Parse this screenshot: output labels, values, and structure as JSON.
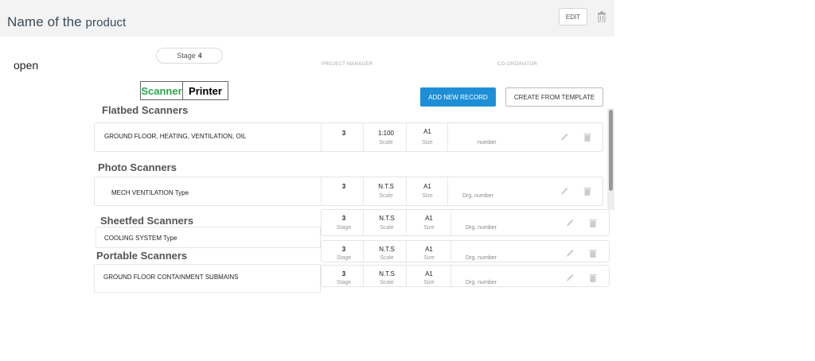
{
  "header": {
    "title_part1": "Name of the",
    "title_part2": "product",
    "edit_label": "EDIT"
  },
  "status": "open",
  "stage": {
    "label": "Stage",
    "value": "4"
  },
  "columns": {
    "project_manager": "PROJECT MANAGER",
    "coordinator": "CO-ORDINATOR"
  },
  "tabs": [
    {
      "label": "Scanner",
      "color": "#2aa84a",
      "active": true
    },
    {
      "label": "Printer",
      "color": "#000000",
      "active": false
    }
  ],
  "actions": {
    "add_new": "ADD NEW RECORD",
    "from_template": "CREATE FROM TEMPLATE"
  },
  "accent_color": "#1e8fd6",
  "sections": [
    {
      "title": "Flatbed Scanners",
      "row": {
        "label": "GROUND FLOOR, HEATING, VENTILATION, OIL",
        "stage": "3",
        "stage_sub": "",
        "scale": "1:100",
        "scale_sub": "Scale",
        "size": "A1",
        "size_sub": "Size",
        "drg": "number"
      }
    },
    {
      "title": "Photo Scanners",
      "row": {
        "label": "MECH VENTILATION Type",
        "stage": "3",
        "stage_sub": "",
        "scale": "N.T.S",
        "scale_sub": "Scale",
        "size": "A1",
        "size_sub": "Size",
        "drg": "Drg. number"
      }
    },
    {
      "title": "Sheetfed Scanners",
      "row": {
        "label": "COOLING SYSTEM Type",
        "stage": "3",
        "stage_sub": "Stage",
        "scale": "N.T.S",
        "scale_sub": "Scale",
        "size": "A1",
        "size_sub": "Size",
        "drg": "Drg. number"
      }
    },
    {
      "title": "Portable Scanners",
      "row": {
        "label": "",
        "stage": "3",
        "stage_sub": "Stage",
        "scale": "N.T.S",
        "scale_sub": "Scale",
        "size": "A1",
        "size_sub": "Size",
        "drg": "Drg. number"
      }
    },
    {
      "title": "",
      "row": {
        "label": "GROUND FLOOR CONTAINMENT SUBMAINS",
        "stage": "3",
        "stage_sub": "Stage",
        "scale": "N.T.S",
        "scale_sub": "Scale",
        "size": "A1",
        "size_sub": "Size",
        "drg": "Drg. number"
      }
    }
  ]
}
